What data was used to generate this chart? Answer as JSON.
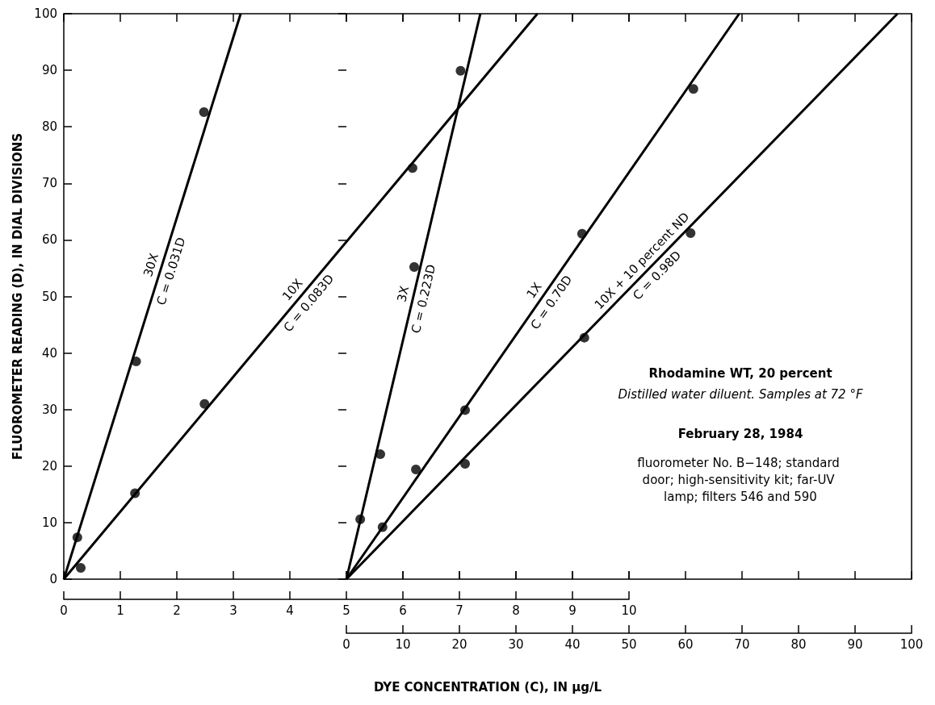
{
  "chart_data": {
    "type": "scatter",
    "title": "Rhodamine WT, 20 percent",
    "subtitle": "Distilled water diluent. Samples at 72 °F",
    "xlabel": "DYE CONCENTRATION (C), IN µg/L",
    "ylabel": "FLUOROMETER READING (D), IN DIAL DIVISIONS",
    "xlim": [
      0,
      15
    ],
    "xticks": [
      0,
      1,
      2,
      3,
      4,
      5,
      6,
      7,
      8,
      9,
      10
    ],
    "x2lim": [
      -50,
      100
    ],
    "x2ticks": [
      0,
      10,
      20,
      30,
      40,
      50,
      60,
      70,
      80,
      90,
      100
    ],
    "ylim": [
      0,
      100
    ],
    "yticks": [
      0,
      10,
      20,
      30,
      40,
      50,
      60,
      70,
      80,
      90,
      100
    ],
    "grid": false,
    "legend": false,
    "marker": "circle",
    "series": [
      {
        "type": "line",
        "name": "30X",
        "marker": "none",
        "color": "#000000",
        "x": [
          0,
          3.13
        ],
        "values": [
          0,
          100
        ]
      },
      {
        "color": "#000000",
        "x": [
          0.24,
          1.28,
          2.48
        ],
        "values": [
          7.4,
          38.5,
          82.6
        ]
      },
      {
        "type": "line",
        "name": "10X",
        "marker": "none",
        "color": "#000000",
        "x": [
          0,
          8.38
        ],
        "values": [
          0,
          100
        ]
      },
      {
        "color": "#000000",
        "x": [
          0.3,
          1.26,
          2.49,
          6.17
        ],
        "values": [
          2.0,
          15.2,
          31.0,
          72.7
        ]
      },
      {
        "type": "line",
        "name": "3X",
        "marker": "none",
        "axis": "x2",
        "color": "#000000",
        "x": [
          0,
          23.7
        ],
        "values": [
          0,
          100
        ]
      },
      {
        "axis": "x2",
        "color": "#000000",
        "x": [
          2.45,
          6.0,
          12.0,
          20.2
        ],
        "values": [
          10.6,
          22.1,
          55.2,
          89.9
        ]
      },
      {
        "type": "line",
        "name": "1X",
        "marker": "none",
        "axis": "x2",
        "color": "#000000",
        "x": [
          0,
          69.5
        ],
        "values": [
          0,
          100
        ]
      },
      {
        "axis": "x2",
        "color": "#000000",
        "x": [
          6.4,
          12.3,
          21.0,
          41.7,
          61.4
        ],
        "values": [
          9.2,
          19.4,
          29.9,
          61.1,
          86.7
        ]
      },
      {
        "type": "line",
        "name": "10X + 10 percent ND",
        "marker": "none",
        "axis": "x2",
        "color": "#000000",
        "x": [
          0,
          97.5
        ],
        "values": [
          0,
          100
        ]
      },
      {
        "axis": "x2",
        "color": "#000000",
        "x": [
          21.0,
          42.1,
          60.9
        ],
        "values": [
          20.4,
          42.7,
          61.2
        ]
      }
    ],
    "annotations": [
      "C = 0.031D",
      "C = 0.083D",
      "C = 0.223D",
      "C = 0.70D",
      "C = 0.98D",
      "February 28, 1984",
      "fluorometer No. B−148; standard door; high-sensitivity kit; far-UV lamp; filters 546 and 590"
    ]
  }
}
